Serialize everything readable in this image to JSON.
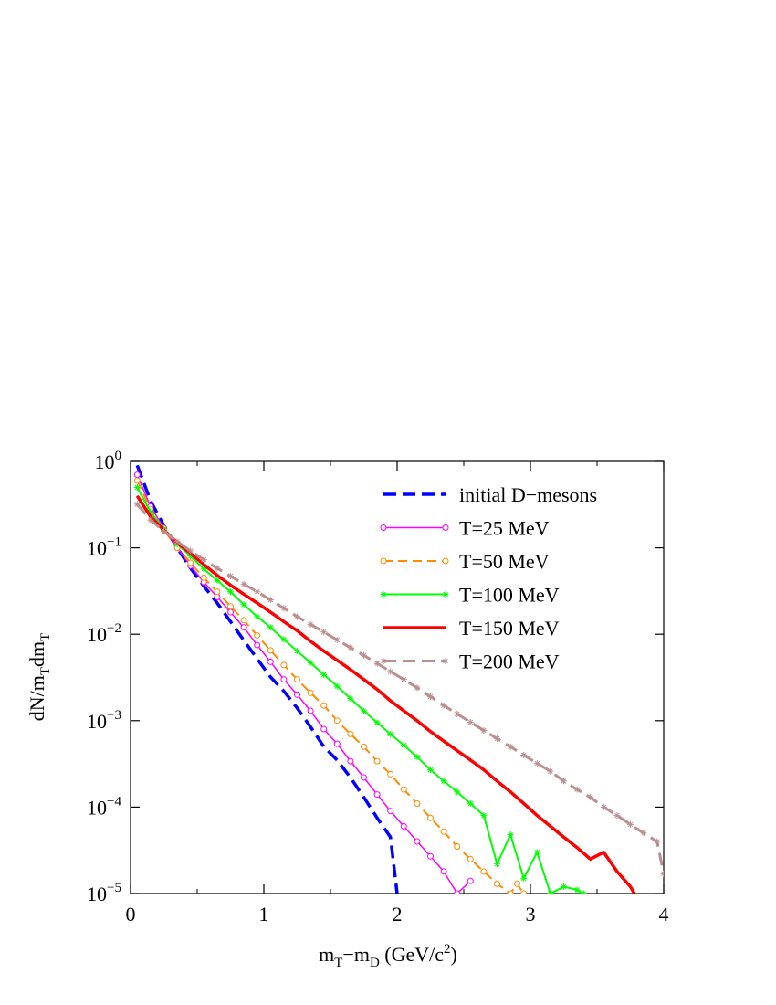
{
  "chart_data": {
    "type": "line",
    "title": "",
    "xlabel": {
      "base1": "m",
      "sub1": "T",
      "mid": "−m",
      "sub2": "D",
      "tail1": " (GeV/c",
      "sup": "2",
      "tail2": ")"
    },
    "ylabel": {
      "p1": "dN/m",
      "s1": "T",
      "p2": "dm",
      "s2": "T"
    },
    "xlim": [
      0,
      4
    ],
    "ylim": [
      1e-05,
      1
    ],
    "yscale": "log",
    "grid": false,
    "legend_position": "top-right",
    "x_ticks": [
      {
        "value": 0,
        "label": "0"
      },
      {
        "value": 1,
        "label": "1"
      },
      {
        "value": 2,
        "label": "2"
      },
      {
        "value": 3,
        "label": "3"
      },
      {
        "value": 4,
        "label": "4"
      }
    ],
    "y_ticks": [
      {
        "value": 1.0,
        "base": "10",
        "exp": "0"
      },
      {
        "value": 0.1,
        "base": "10",
        "exp": "−1"
      },
      {
        "value": 0.01,
        "base": "10",
        "exp": "−2"
      },
      {
        "value": 0.001,
        "base": "10",
        "exp": "−3"
      },
      {
        "value": 0.0001,
        "base": "10",
        "exp": "−4"
      },
      {
        "value": 1e-05,
        "base": "10",
        "exp": "−5"
      }
    ],
    "series": [
      {
        "name": "initial D−mesons",
        "color": "#0000ff",
        "dash": "14,7",
        "width": 3.5,
        "marker": "none",
        "points": [
          [
            0.05,
            0.9
          ],
          [
            0.15,
            0.35
          ],
          [
            0.25,
            0.18
          ],
          [
            0.35,
            0.1
          ],
          [
            0.45,
            0.058
          ],
          [
            0.55,
            0.036
          ],
          [
            0.65,
            0.023
          ],
          [
            0.75,
            0.014
          ],
          [
            0.85,
            0.0085
          ],
          [
            0.95,
            0.0052
          ],
          [
            1.05,
            0.0032
          ],
          [
            1.15,
            0.0022
          ],
          [
            1.25,
            0.0014
          ],
          [
            1.35,
            0.00085
          ],
          [
            1.45,
            0.0005
          ],
          [
            1.55,
            0.00035
          ],
          [
            1.65,
            0.00022
          ],
          [
            1.75,
            0.00013
          ],
          [
            1.85,
            7.5e-05
          ],
          [
            1.95,
            4.5e-05
          ],
          [
            2.0,
            1e-05
          ]
        ]
      },
      {
        "name": "T=25 MeV",
        "color": "#ff00ff",
        "dash": "",
        "width": 1.5,
        "marker": "circle",
        "points": [
          [
            0.05,
            0.7
          ],
          [
            0.15,
            0.3
          ],
          [
            0.25,
            0.17
          ],
          [
            0.35,
            0.1
          ],
          [
            0.45,
            0.062
          ],
          [
            0.55,
            0.04
          ],
          [
            0.65,
            0.027
          ],
          [
            0.75,
            0.018
          ],
          [
            0.85,
            0.012
          ],
          [
            0.95,
            0.0075
          ],
          [
            1.05,
            0.0048
          ],
          [
            1.15,
            0.003
          ],
          [
            1.25,
            0.002
          ],
          [
            1.35,
            0.0013
          ],
          [
            1.45,
            0.0008
          ],
          [
            1.55,
            0.00054
          ],
          [
            1.65,
            0.00034
          ],
          [
            1.75,
            0.00022
          ],
          [
            1.85,
            0.00014
          ],
          [
            1.95,
            9e-05
          ],
          [
            2.05,
            6e-05
          ],
          [
            2.15,
            4e-05
          ],
          [
            2.25,
            2.7e-05
          ],
          [
            2.35,
            1.8e-05
          ],
          [
            2.45,
            1e-05
          ],
          [
            2.55,
            1.4e-05
          ]
        ]
      },
      {
        "name": "T=50 MeV",
        "color": "#ff8c00",
        "dash": "10,6",
        "width": 2,
        "marker": "circle",
        "points": [
          [
            0.05,
            0.6
          ],
          [
            0.15,
            0.28
          ],
          [
            0.25,
            0.16
          ],
          [
            0.35,
            0.1
          ],
          [
            0.45,
            0.067
          ],
          [
            0.55,
            0.045
          ],
          [
            0.65,
            0.031
          ],
          [
            0.75,
            0.021
          ],
          [
            0.85,
            0.0145
          ],
          [
            0.95,
            0.0097
          ],
          [
            1.05,
            0.0065
          ],
          [
            1.15,
            0.0044
          ],
          [
            1.25,
            0.003
          ],
          [
            1.35,
            0.0021
          ],
          [
            1.45,
            0.0015
          ],
          [
            1.55,
            0.001
          ],
          [
            1.65,
            0.0007
          ],
          [
            1.75,
            0.0005
          ],
          [
            1.85,
            0.00034
          ],
          [
            1.95,
            0.00024
          ],
          [
            2.05,
            0.00016
          ],
          [
            2.15,
            0.00011
          ],
          [
            2.25,
            7.5e-05
          ],
          [
            2.35,
            5.2e-05
          ],
          [
            2.45,
            3.5e-05
          ],
          [
            2.55,
            2.5e-05
          ],
          [
            2.65,
            1.8e-05
          ],
          [
            2.75,
            1.3e-05
          ],
          [
            2.85,
            1e-05
          ],
          [
            2.9,
            1.3e-05
          ],
          [
            2.95,
            1e-05
          ]
        ]
      },
      {
        "name": "T=100 MeV",
        "color": "#00ff00",
        "dash": "",
        "width": 2,
        "marker": "star",
        "points": [
          [
            0.05,
            0.5
          ],
          [
            0.15,
            0.26
          ],
          [
            0.25,
            0.165
          ],
          [
            0.35,
            0.11
          ],
          [
            0.45,
            0.08
          ],
          [
            0.55,
            0.057
          ],
          [
            0.65,
            0.042
          ],
          [
            0.75,
            0.031
          ],
          [
            0.85,
            0.022
          ],
          [
            0.95,
            0.016
          ],
          [
            1.05,
            0.012
          ],
          [
            1.15,
            0.0087
          ],
          [
            1.25,
            0.0064
          ],
          [
            1.35,
            0.0047
          ],
          [
            1.45,
            0.0034
          ],
          [
            1.55,
            0.0025
          ],
          [
            1.65,
            0.0018
          ],
          [
            1.75,
            0.0013
          ],
          [
            1.85,
            0.00095
          ],
          [
            1.95,
            0.0007
          ],
          [
            2.05,
            0.00052
          ],
          [
            2.15,
            0.00038
          ],
          [
            2.25,
            0.00027
          ],
          [
            2.35,
            0.0002
          ],
          [
            2.45,
            0.00015
          ],
          [
            2.55,
            0.00011
          ],
          [
            2.65,
            8e-05
          ],
          [
            2.75,
            2.2e-05
          ],
          [
            2.85,
            4.8e-05
          ],
          [
            2.95,
            1.5e-05
          ],
          [
            3.05,
            3e-05
          ],
          [
            3.15,
            1e-05
          ],
          [
            3.25,
            1.2e-05
          ],
          [
            3.35,
            1.1e-05
          ],
          [
            3.4,
            1e-05
          ]
        ]
      },
      {
        "name": "T=150 MeV",
        "color": "#ff0000",
        "dash": "",
        "width": 3.5,
        "marker": "none",
        "points": [
          [
            0.05,
            0.4
          ],
          [
            0.15,
            0.23
          ],
          [
            0.25,
            0.16
          ],
          [
            0.35,
            0.115
          ],
          [
            0.45,
            0.086
          ],
          [
            0.55,
            0.064
          ],
          [
            0.65,
            0.048
          ],
          [
            0.75,
            0.037
          ],
          [
            0.85,
            0.029
          ],
          [
            0.95,
            0.023
          ],
          [
            1.05,
            0.018
          ],
          [
            1.15,
            0.014
          ],
          [
            1.25,
            0.011
          ],
          [
            1.35,
            0.0083
          ],
          [
            1.45,
            0.0064
          ],
          [
            1.55,
            0.005
          ],
          [
            1.65,
            0.0039
          ],
          [
            1.75,
            0.003
          ],
          [
            1.85,
            0.0023
          ],
          [
            1.95,
            0.0017
          ],
          [
            2.05,
            0.0013
          ],
          [
            2.15,
            0.001
          ],
          [
            2.25,
            0.00075
          ],
          [
            2.35,
            0.00058
          ],
          [
            2.45,
            0.00045
          ],
          [
            2.55,
            0.00035
          ],
          [
            2.65,
            0.00027
          ],
          [
            2.75,
            0.0002
          ],
          [
            2.85,
            0.00015
          ],
          [
            2.95,
            0.00011
          ],
          [
            3.05,
            8e-05
          ],
          [
            3.15,
            6e-05
          ],
          [
            3.25,
            4.5e-05
          ],
          [
            3.35,
            3.4e-05
          ],
          [
            3.45,
            2.5e-05
          ],
          [
            3.55,
            3e-05
          ],
          [
            3.65,
            1.8e-05
          ],
          [
            3.75,
            1.2e-05
          ],
          [
            3.78,
            1e-05
          ]
        ]
      },
      {
        "name": "T=200 MeV",
        "color": "#bc8f8f",
        "dash": "14,7",
        "width": 3,
        "marker": "star",
        "points": [
          [
            0.05,
            0.32
          ],
          [
            0.15,
            0.21
          ],
          [
            0.25,
            0.155
          ],
          [
            0.35,
            0.118
          ],
          [
            0.45,
            0.092
          ],
          [
            0.55,
            0.073
          ],
          [
            0.65,
            0.058
          ],
          [
            0.75,
            0.047
          ],
          [
            0.85,
            0.038
          ],
          [
            0.95,
            0.031
          ],
          [
            1.05,
            0.025
          ],
          [
            1.15,
            0.02
          ],
          [
            1.25,
            0.016
          ],
          [
            1.35,
            0.013
          ],
          [
            1.45,
            0.0106
          ],
          [
            1.55,
            0.0086
          ],
          [
            1.65,
            0.007
          ],
          [
            1.75,
            0.0057
          ],
          [
            1.85,
            0.0046
          ],
          [
            1.95,
            0.0037
          ],
          [
            2.05,
            0.003
          ],
          [
            2.15,
            0.0024
          ],
          [
            2.25,
            0.0019
          ],
          [
            2.35,
            0.0015
          ],
          [
            2.45,
            0.0012
          ],
          [
            2.55,
            0.00096
          ],
          [
            2.65,
            0.00077
          ],
          [
            2.75,
            0.00062
          ],
          [
            2.85,
            0.0005
          ],
          [
            2.95,
            0.0004
          ],
          [
            3.05,
            0.00032
          ],
          [
            3.15,
            0.00026
          ],
          [
            3.25,
            0.0002
          ],
          [
            3.35,
            0.00016
          ],
          [
            3.45,
            0.00013
          ],
          [
            3.55,
            0.0001
          ],
          [
            3.65,
            8e-05
          ],
          [
            3.75,
            6.3e-05
          ],
          [
            3.85,
            5e-05
          ],
          [
            3.95,
            4e-05
          ],
          [
            4.0,
            1.7e-05
          ]
        ]
      }
    ]
  }
}
